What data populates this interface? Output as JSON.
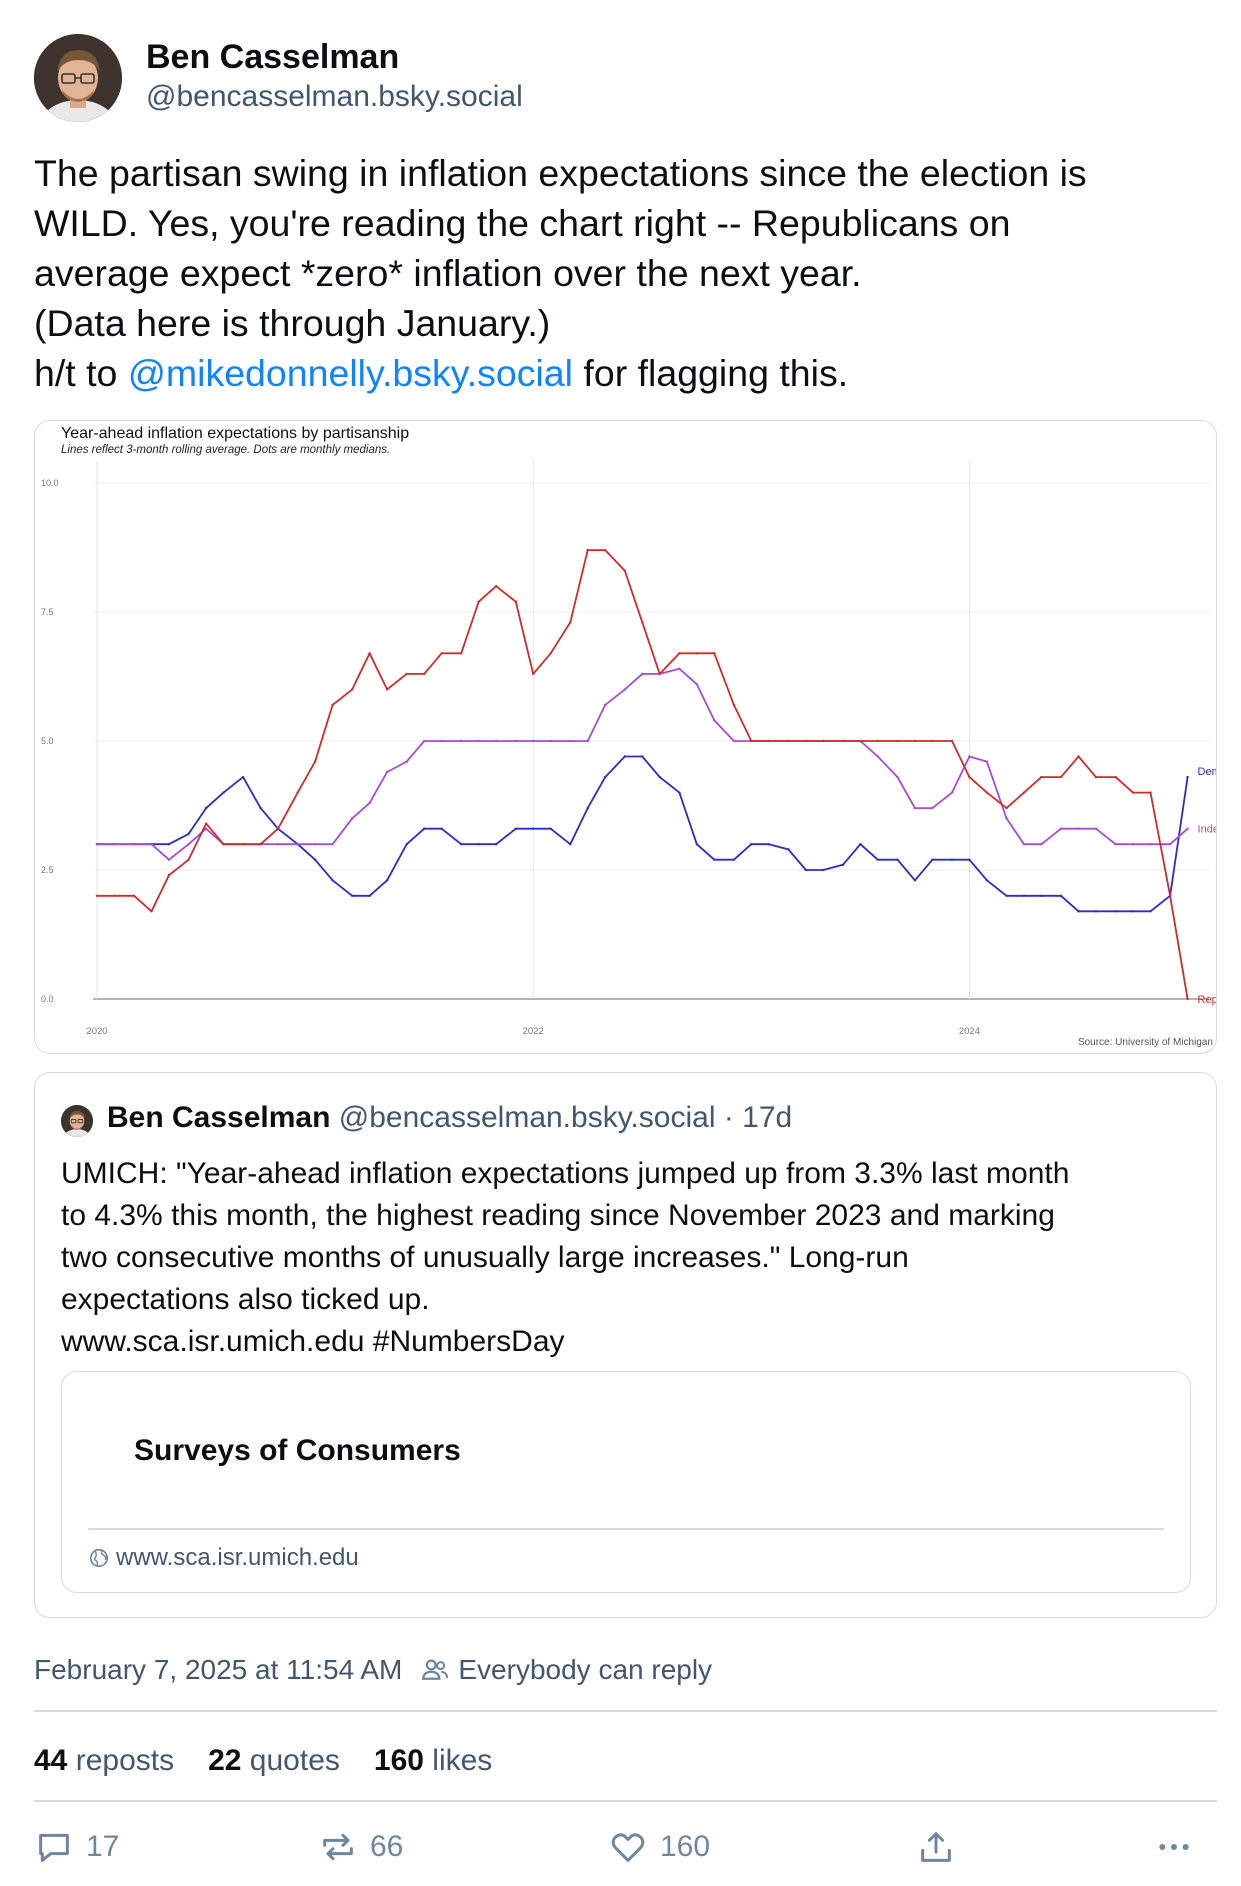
{
  "author": {
    "display_name": "Ben Casselman",
    "handle": "@bencasselman.bsky.social"
  },
  "post": {
    "lines": [
      "The partisan swing in inflation expectations since the election is",
      "WILD. Yes, you're reading the chart right -- Republicans on",
      "average expect *zero* inflation over the next year.",
      "(Data here is through January.)"
    ],
    "ht_prefix": "h/t to ",
    "mention": "@mikedonnelly.bsky.social",
    "ht_suffix": " for flagging this."
  },
  "chart_data": {
    "type": "line",
    "title": "Year-ahead inflation expectations by partisanship",
    "subtitle": "Lines reflect 3-month rolling average. Dots are monthly medians.",
    "source": "Source: University of Michigan",
    "x_ticks": [
      "2020",
      "2022",
      "2024"
    ],
    "y_ticks": [
      "0.0",
      "2.5",
      "5.0",
      "7.5",
      "10.0"
    ],
    "xlim": [
      2020.0,
      2025.08
    ],
    "ylim": [
      0,
      10
    ],
    "grid": true,
    "legend": "line-end labels",
    "series": [
      {
        "name": "Democrat",
        "color": "#2b2bc8",
        "x": [
          2020.0,
          2020.08,
          2020.17,
          2020.25,
          2020.33,
          2020.42,
          2020.5,
          2020.58,
          2020.67,
          2020.75,
          2020.83,
          2020.92,
          2021.0,
          2021.08,
          2021.17,
          2021.25,
          2021.33,
          2021.42,
          2021.5,
          2021.58,
          2021.67,
          2021.75,
          2021.83,
          2021.92,
          2022.0,
          2022.08,
          2022.17,
          2022.25,
          2022.33,
          2022.42,
          2022.5,
          2022.58,
          2022.67,
          2022.75,
          2022.83,
          2022.92,
          2023.0,
          2023.08,
          2023.17,
          2023.25,
          2023.33,
          2023.42,
          2023.5,
          2023.58,
          2023.67,
          2023.75,
          2023.83,
          2023.92,
          2024.0,
          2024.08,
          2024.17,
          2024.25,
          2024.33,
          2024.42,
          2024.5,
          2024.58,
          2024.67,
          2024.75,
          2024.83,
          2024.92,
          2025.0
        ],
        "values": [
          3.0,
          3.0,
          3.0,
          3.0,
          3.0,
          3.2,
          3.7,
          4.0,
          4.3,
          3.7,
          3.3,
          3.0,
          2.7,
          2.3,
          2.0,
          2.0,
          2.3,
          3.0,
          3.3,
          3.3,
          3.0,
          3.0,
          3.0,
          3.3,
          3.3,
          3.3,
          3.0,
          3.7,
          4.3,
          4.7,
          4.7,
          4.3,
          4.0,
          3.0,
          2.7,
          2.7,
          3.0,
          3.0,
          2.9,
          2.5,
          2.5,
          2.6,
          3.0,
          2.7,
          2.7,
          2.3,
          2.7,
          2.7,
          2.7,
          2.3,
          2.0,
          2.0,
          2.0,
          2.0,
          1.7,
          1.7,
          1.7,
          1.7,
          1.7,
          2.0,
          4.3
        ]
      },
      {
        "name": "Independent",
        "color": "#a64bd6",
        "x": [
          2020.0,
          2020.08,
          2020.17,
          2020.25,
          2020.33,
          2020.42,
          2020.5,
          2020.58,
          2020.67,
          2020.75,
          2020.83,
          2020.92,
          2021.0,
          2021.08,
          2021.17,
          2021.25,
          2021.33,
          2021.42,
          2021.5,
          2021.58,
          2021.67,
          2021.75,
          2021.83,
          2021.92,
          2022.0,
          2022.08,
          2022.17,
          2022.25,
          2022.33,
          2022.42,
          2022.5,
          2022.58,
          2022.67,
          2022.75,
          2022.83,
          2022.92,
          2023.0,
          2023.08,
          2023.17,
          2023.25,
          2023.33,
          2023.42,
          2023.5,
          2023.58,
          2023.67,
          2023.75,
          2023.83,
          2023.92,
          2024.0,
          2024.08,
          2024.17,
          2024.25,
          2024.33,
          2024.42,
          2024.5,
          2024.58,
          2024.67,
          2024.75,
          2024.83,
          2024.92,
          2025.0
        ],
        "values": [
          3.0,
          3.0,
          3.0,
          3.0,
          2.7,
          3.0,
          3.3,
          3.0,
          3.0,
          3.0,
          3.0,
          3.0,
          3.0,
          3.0,
          3.5,
          3.8,
          4.4,
          4.6,
          5.0,
          5.0,
          5.0,
          5.0,
          5.0,
          5.0,
          5.0,
          5.0,
          5.0,
          5.0,
          5.7,
          6.0,
          6.3,
          6.3,
          6.4,
          6.1,
          5.4,
          5.0,
          5.0,
          5.0,
          5.0,
          5.0,
          5.0,
          5.0,
          5.0,
          4.7,
          4.3,
          3.7,
          3.7,
          4.0,
          4.7,
          4.6,
          3.5,
          3.0,
          3.0,
          3.3,
          3.3,
          3.3,
          3.0,
          3.0,
          3.0,
          3.0,
          3.3
        ]
      },
      {
        "name": "Republican",
        "color": "#d02b2b",
        "x": [
          2020.0,
          2020.08,
          2020.17,
          2020.25,
          2020.33,
          2020.42,
          2020.5,
          2020.58,
          2020.67,
          2020.75,
          2020.83,
          2020.92,
          2021.0,
          2021.08,
          2021.17,
          2021.25,
          2021.33,
          2021.42,
          2021.5,
          2021.58,
          2021.67,
          2021.75,
          2021.83,
          2021.92,
          2022.0,
          2022.08,
          2022.17,
          2022.25,
          2022.33,
          2022.42,
          2022.5,
          2022.58,
          2022.67,
          2022.75,
          2022.83,
          2022.92,
          2023.0,
          2023.08,
          2023.17,
          2023.25,
          2023.33,
          2023.42,
          2023.5,
          2023.58,
          2023.67,
          2023.75,
          2023.83,
          2023.92,
          2024.0,
          2024.08,
          2024.17,
          2024.25,
          2024.33,
          2024.42,
          2024.5,
          2024.58,
          2024.67,
          2024.75,
          2024.83,
          2024.92,
          2025.0
        ],
        "values": [
          2.0,
          2.0,
          2.0,
          1.7,
          2.4,
          2.7,
          3.4,
          3.0,
          3.0,
          3.0,
          3.3,
          4.0,
          4.6,
          5.7,
          6.0,
          6.7,
          6.0,
          6.3,
          6.3,
          6.7,
          6.7,
          7.7,
          8.0,
          7.7,
          6.3,
          6.7,
          7.3,
          8.7,
          8.7,
          8.3,
          7.3,
          6.3,
          6.7,
          6.7,
          6.7,
          5.7,
          5.0,
          5.0,
          5.0,
          5.0,
          5.0,
          5.0,
          5.0,
          5.0,
          5.0,
          5.0,
          5.0,
          5.0,
          4.3,
          4.0,
          3.7,
          4.0,
          4.3,
          4.3,
          4.7,
          4.3,
          4.3,
          4.0,
          4.0,
          2.0,
          0.0
        ]
      }
    ]
  },
  "quote": {
    "display_name": "Ben Casselman",
    "handle": "@bencasselman.bsky.social",
    "age": " · 17d",
    "lines": [
      "UMICH: \"Year-ahead inflation expectations jumped up from 3.3% last month",
      "to 4.3% this month, the highest reading since November 2023 and marking",
      "two consecutive months of unusually large increases.\" Long-run",
      "expectations also ticked up.",
      "www.sca.isr.umich.edu #NumbersDay"
    ],
    "link_card": {
      "title": "Surveys of Consumers",
      "domain": "www.sca.isr.umich.edu",
      "icon": "globe-icon"
    }
  },
  "meta": {
    "timestamp": "February 7, 2025 at 11:54 AM",
    "reply_setting": "Everybody can reply",
    "reply_icon": "people-icon"
  },
  "stats": {
    "reposts_count": "44",
    "reposts_label": " reposts",
    "quotes_count": "22",
    "quotes_label": " quotes",
    "likes_count": "160",
    "likes_label": " likes"
  },
  "actions": {
    "reply_count": "17",
    "repost_count": "66",
    "like_count": "160",
    "share_icon": "share-icon",
    "more_icon": "more-icon"
  },
  "colors": {
    "link": "#1083fe",
    "muted": "#42576c",
    "border": "#d4dbe2",
    "icon": "#6f869f"
  }
}
